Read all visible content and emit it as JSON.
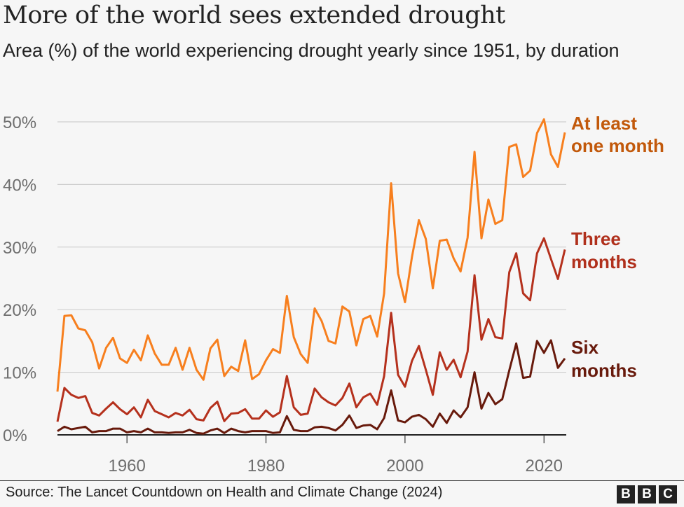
{
  "title": "More of the world sees extended drought",
  "subtitle": "Area (%) of the world experiencing drought yearly since 1951, by duration",
  "source": "Source: The Lancet Countdown on Health and Climate Change (2024)",
  "logo": [
    "B",
    "B",
    "C"
  ],
  "chart_data": {
    "type": "line",
    "title": "More of the world sees extended drought",
    "subtitle": "Area (%) of the world experiencing drought yearly since 1951, by duration",
    "xlim": [
      1950,
      2023
    ],
    "ylim": [
      0,
      50
    ],
    "grid": true,
    "x_ticks": [
      1960,
      1980,
      2000,
      2020
    ],
    "y_ticks": [
      0,
      10,
      20,
      30,
      40,
      50
    ],
    "y_tick_labels": [
      "0%",
      "10%",
      "20%",
      "30%",
      "40%",
      "50%"
    ],
    "x_start": 1950,
    "series": [
      {
        "name": "At least one month",
        "color": "#f77f1e",
        "label_color": "#c2590b",
        "label_lines": [
          "At least",
          "one month"
        ],
        "values": [
          6.9,
          19.0,
          19.1,
          17.0,
          16.7,
          14.8,
          10.6,
          13.9,
          15.5,
          12.2,
          11.5,
          13.6,
          11.9,
          15.9,
          13.0,
          11.2,
          11.2,
          13.9,
          10.4,
          13.9,
          10.4,
          8.8,
          13.8,
          15.2,
          9.4,
          10.9,
          10.2,
          15.1,
          8.9,
          9.7,
          11.9,
          13.7,
          13.1,
          22.2,
          15.6,
          12.9,
          11.5,
          20.2,
          18.2,
          15.0,
          14.6,
          20.5,
          19.7,
          14.3,
          18.5,
          19.0,
          15.7,
          22.6,
          40.2,
          25.8,
          21.2,
          28.4,
          34.3,
          31.3,
          23.4,
          31.0,
          31.2,
          28.2,
          26.1,
          31.5,
          45.2,
          31.4,
          37.6,
          33.7,
          34.3,
          46.0,
          46.4,
          41.2,
          42.2,
          48.2,
          50.4,
          44.8,
          42.8,
          48.3
        ]
      },
      {
        "name": "Three months",
        "color": "#b5311d",
        "label_color": "#b0301c",
        "label_lines": [
          "Three",
          "months"
        ],
        "values": [
          2.1,
          7.5,
          6.4,
          5.9,
          6.2,
          3.5,
          3.1,
          4.2,
          5.2,
          4.1,
          3.3,
          4.4,
          2.8,
          5.6,
          3.8,
          3.3,
          2.8,
          3.5,
          3.1,
          4.0,
          2.5,
          2.3,
          4.3,
          5.3,
          2.2,
          3.4,
          3.5,
          4.1,
          2.6,
          2.6,
          3.9,
          2.9,
          3.6,
          9.4,
          4.4,
          3.2,
          3.4,
          7.4,
          6.0,
          5.2,
          4.7,
          5.9,
          8.2,
          4.4,
          6.0,
          6.6,
          4.8,
          9.4,
          19.5,
          9.6,
          7.7,
          11.8,
          14.2,
          10.4,
          6.4,
          13.2,
          10.4,
          12.0,
          9.2,
          13.3,
          25.5,
          15.2,
          18.5,
          15.6,
          15.4,
          26.0,
          29.0,
          22.6,
          21.5,
          29.0,
          31.4,
          28.1,
          24.9,
          29.6
        ]
      },
      {
        "name": "Six months",
        "color": "#681a0c",
        "label_color": "#681a0c",
        "label_lines": [
          "Six",
          "months"
        ],
        "values": [
          0.6,
          1.3,
          0.9,
          1.1,
          1.3,
          0.4,
          0.6,
          0.6,
          1.0,
          1.0,
          0.4,
          0.6,
          0.4,
          1.0,
          0.4,
          0.4,
          0.3,
          0.4,
          0.4,
          0.8,
          0.3,
          0.2,
          0.7,
          1.0,
          0.3,
          1.0,
          0.6,
          0.4,
          0.6,
          0.6,
          0.6,
          0.3,
          0.4,
          3.0,
          0.8,
          0.6,
          0.6,
          1.2,
          1.3,
          1.1,
          0.7,
          1.6,
          3.1,
          1.1,
          1.5,
          1.6,
          0.9,
          2.7,
          7.1,
          2.3,
          2.0,
          2.9,
          3.2,
          2.5,
          1.3,
          3.4,
          1.9,
          3.9,
          2.8,
          4.4,
          10.0,
          4.2,
          6.7,
          4.9,
          5.7,
          10.3,
          14.6,
          9.1,
          9.3,
          15.0,
          13.1,
          15.1,
          10.7,
          12.2
        ]
      }
    ]
  }
}
